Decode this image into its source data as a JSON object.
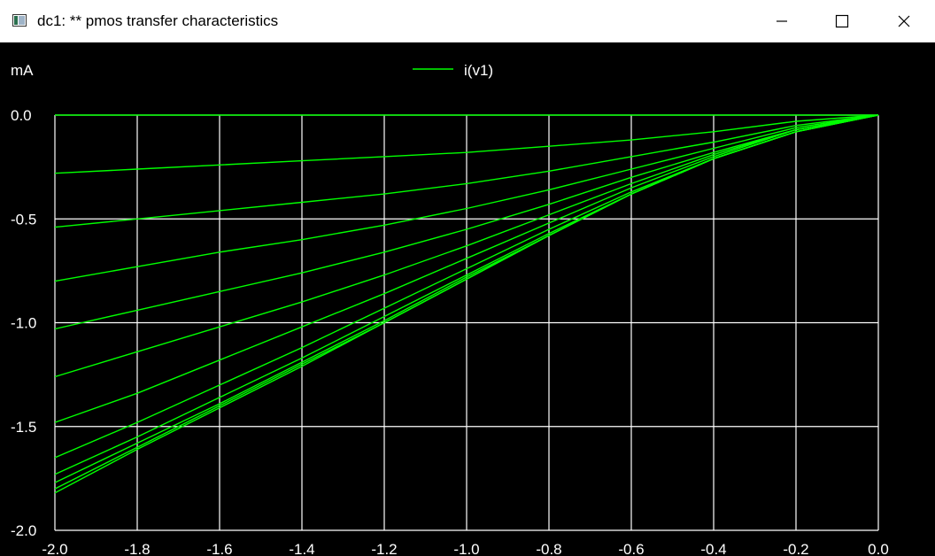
{
  "window": {
    "title": "dc1: ** pmos transfer characteristics",
    "buttons": {
      "minimize": "minimize",
      "maximize": "maximize",
      "close": "close"
    }
  },
  "colors": {
    "background": "#000000",
    "grid": "#ffffff",
    "trace": "#00ff00",
    "text": "#ffffff"
  },
  "chart_data": {
    "type": "line",
    "title": "",
    "xlabel": "",
    "ylabel": "mA",
    "xlim": [
      -2.0,
      0.0
    ],
    "ylim": [
      -2.0,
      0.0
    ],
    "xticks": [
      "-2.0",
      "-1.8",
      "-1.6",
      "-1.4",
      "-1.2",
      "-1.0",
      "-0.8",
      "-0.6",
      "-0.4",
      "-0.2",
      "0.0"
    ],
    "yticks": [
      "0.0",
      "-0.5",
      "-1.0",
      "-1.5",
      "-2.0"
    ],
    "grid": true,
    "legend": {
      "position": "top-center",
      "entries": [
        "i(v1)"
      ]
    },
    "x": [
      -2.0,
      -1.8,
      -1.6,
      -1.4,
      -1.2,
      -1.0,
      -0.8,
      -0.6,
      -0.4,
      -0.2,
      0.0
    ],
    "series": [
      {
        "name": "i(v1)",
        "values": [
          0.0,
          0.0,
          0.0,
          0.0,
          0.0,
          0.0,
          0.0,
          0.0,
          0.0,
          0.0,
          0.0
        ]
      },
      {
        "values": [
          -0.28,
          -0.26,
          -0.24,
          -0.22,
          -0.2,
          -0.18,
          -0.15,
          -0.12,
          -0.08,
          -0.03,
          0.0
        ]
      },
      {
        "values": [
          -0.54,
          -0.5,
          -0.46,
          -0.42,
          -0.38,
          -0.33,
          -0.27,
          -0.2,
          -0.13,
          -0.05,
          0.0
        ]
      },
      {
        "values": [
          -0.8,
          -0.73,
          -0.66,
          -0.6,
          -0.53,
          -0.45,
          -0.36,
          -0.26,
          -0.16,
          -0.06,
          0.0
        ]
      },
      {
        "values": [
          -1.03,
          -0.94,
          -0.85,
          -0.76,
          -0.66,
          -0.55,
          -0.43,
          -0.3,
          -0.18,
          -0.07,
          0.0
        ]
      },
      {
        "values": [
          -1.26,
          -1.14,
          -1.02,
          -0.9,
          -0.77,
          -0.63,
          -0.48,
          -0.33,
          -0.19,
          -0.07,
          0.0
        ]
      },
      {
        "values": [
          -1.48,
          -1.34,
          -1.18,
          -1.02,
          -0.86,
          -0.69,
          -0.52,
          -0.35,
          -0.2,
          -0.07,
          0.0
        ]
      },
      {
        "values": [
          -1.65,
          -1.48,
          -1.3,
          -1.12,
          -0.93,
          -0.74,
          -0.55,
          -0.37,
          -0.21,
          -0.08,
          0.0
        ]
      },
      {
        "values": [
          -1.73,
          -1.55,
          -1.36,
          -1.17,
          -0.97,
          -0.77,
          -0.57,
          -0.38,
          -0.21,
          -0.08,
          0.0
        ]
      },
      {
        "values": [
          -1.77,
          -1.58,
          -1.39,
          -1.19,
          -0.99,
          -0.78,
          -0.58,
          -0.38,
          -0.21,
          -0.08,
          0.0
        ]
      },
      {
        "values": [
          -1.8,
          -1.6,
          -1.4,
          -1.2,
          -1.0,
          -0.79,
          -0.58,
          -0.38,
          -0.21,
          -0.08,
          0.0
        ]
      },
      {
        "values": [
          -1.82,
          -1.61,
          -1.41,
          -1.21,
          -1.0,
          -0.79,
          -0.58,
          -0.38,
          -0.21,
          -0.08,
          0.0
        ]
      }
    ]
  }
}
